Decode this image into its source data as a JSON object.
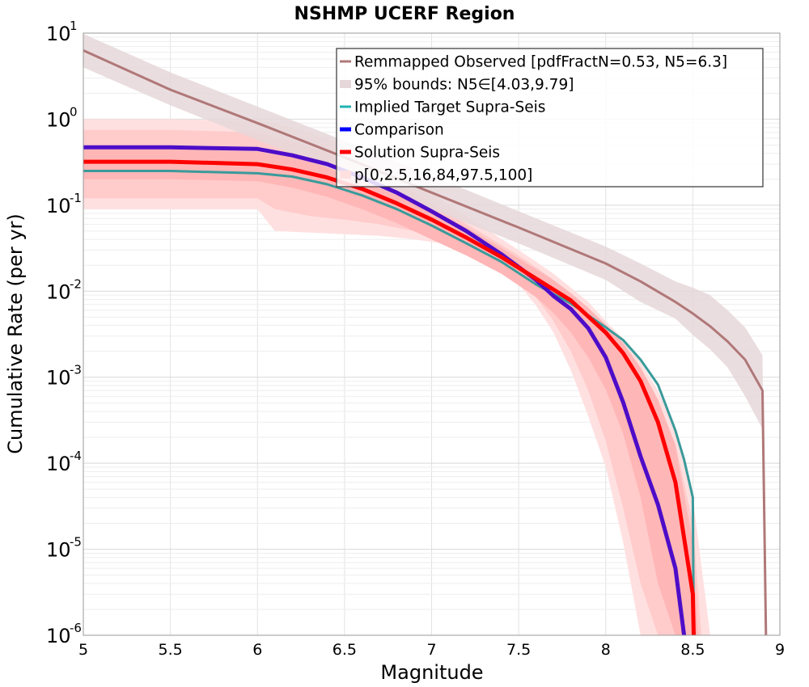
{
  "chart_data": {
    "type": "line",
    "title": "NSHMP UCERF Region",
    "xlabel": "Magnitude",
    "ylabel": "Cumulative Rate (per yr)",
    "x_scale": "linear",
    "y_scale": "log",
    "xlim": [
      5,
      9
    ],
    "ylim": [
      1e-06,
      10
    ],
    "xticks": [
      "5",
      "5.5",
      "6",
      "6.5",
      "7",
      "7.5",
      "8",
      "8.5",
      "9"
    ],
    "yticks": [
      {
        "base": "10",
        "exp": "-6"
      },
      {
        "base": "10",
        "exp": "-5"
      },
      {
        "base": "10",
        "exp": "-4"
      },
      {
        "base": "10",
        "exp": "-3"
      },
      {
        "base": "10",
        "exp": "-2"
      },
      {
        "base": "10",
        "exp": "-1"
      },
      {
        "base": "10",
        "exp": "0"
      },
      {
        "base": "10",
        "exp": "1"
      }
    ],
    "grid": true,
    "legend_position": "top-right",
    "colors": {
      "observed": "#b07878",
      "observed_band": "#e6d7d9",
      "target": "#3a9a9a",
      "target_legend": "#22b2b2",
      "comparison": "#4d0dc8",
      "comparison_legend": "#0000ff",
      "solution": "#ff0000",
      "band_outer": "#ffe0e0",
      "band_mid": "#ffcbcb",
      "band_inner": "#ffb6b6"
    },
    "legend": [
      {
        "key": "observed",
        "label": "Remmapped Observed [pdfFractN=0.53, N5=6.3]"
      },
      {
        "key": "observed_band",
        "label": "95% bounds: N5∈[4.03,9.79]"
      },
      {
        "key": "target",
        "label": "Implied Target Supra-Seis"
      },
      {
        "key": "comparison",
        "label": "Comparison"
      },
      {
        "key": "solution",
        "label": "Solution Supra-Seis"
      },
      {
        "key": "bands",
        "label": "p[0,2.5,16,84,97.5,100]"
      }
    ],
    "series": [
      {
        "key": "observed",
        "x": [
          5.0,
          5.5,
          6.0,
          6.5,
          7.0,
          7.5,
          8.0,
          8.2,
          8.4,
          8.5,
          8.6,
          8.7,
          8.8,
          8.9,
          8.92
        ],
        "values": [
          6.3,
          2.2,
          0.9,
          0.36,
          0.14,
          0.055,
          0.021,
          0.013,
          0.0075,
          0.0055,
          0.0039,
          0.0026,
          0.0016,
          0.0007,
          1e-06
        ]
      },
      {
        "key": "observed_band_upper",
        "x": [
          5.0,
          5.5,
          6.0,
          6.5,
          7.0,
          7.5,
          8.0,
          8.2,
          8.4,
          8.5,
          8.6,
          8.7,
          8.8,
          8.9
        ],
        "values": [
          9.8,
          3.5,
          1.4,
          0.56,
          0.22,
          0.085,
          0.033,
          0.021,
          0.013,
          0.011,
          0.009,
          0.006,
          0.0038,
          0.0018
        ]
      },
      {
        "key": "observed_band_lower",
        "x": [
          5.0,
          5.5,
          6.0,
          6.5,
          7.0,
          7.5,
          8.0,
          8.2,
          8.4,
          8.5,
          8.6,
          8.7,
          8.8,
          8.9
        ],
        "values": [
          4.0,
          1.45,
          0.57,
          0.23,
          0.09,
          0.036,
          0.0135,
          0.0075,
          0.0048,
          0.0031,
          0.0021,
          0.0013,
          0.0006,
          0.00025
        ]
      },
      {
        "key": "target",
        "x": [
          5.0,
          5.5,
          6.0,
          6.2,
          6.4,
          6.6,
          6.8,
          7.0,
          7.2,
          7.4,
          7.6,
          7.8,
          8.0,
          8.1,
          8.2,
          8.3,
          8.4,
          8.45,
          8.5,
          8.505
        ],
        "values": [
          0.25,
          0.25,
          0.235,
          0.215,
          0.175,
          0.13,
          0.09,
          0.058,
          0.036,
          0.022,
          0.012,
          0.0072,
          0.0038,
          0.0027,
          0.0016,
          0.00082,
          0.00024,
          0.00011,
          4e-05,
          1e-06
        ]
      },
      {
        "key": "comparison",
        "x": [
          5.0,
          5.5,
          6.0,
          6.2,
          6.4,
          6.6,
          6.8,
          7.0,
          7.2,
          7.4,
          7.6,
          7.7,
          7.8,
          7.9,
          8.0,
          8.1,
          8.2,
          8.3,
          8.4,
          8.45
        ],
        "values": [
          0.47,
          0.47,
          0.45,
          0.38,
          0.3,
          0.21,
          0.14,
          0.085,
          0.05,
          0.027,
          0.0135,
          0.0088,
          0.0062,
          0.0037,
          0.0017,
          0.00051,
          0.00012,
          3.3e-05,
          6e-06,
          1e-06
        ]
      },
      {
        "key": "solution",
        "x": [
          5.0,
          5.5,
          6.0,
          6.2,
          6.4,
          6.6,
          6.8,
          7.0,
          7.2,
          7.4,
          7.6,
          7.8,
          8.0,
          8.1,
          8.2,
          8.3,
          8.4,
          8.5,
          8.505
        ],
        "values": [
          0.32,
          0.32,
          0.3,
          0.26,
          0.21,
          0.155,
          0.105,
          0.068,
          0.042,
          0.025,
          0.014,
          0.0078,
          0.0033,
          0.0019,
          0.0009,
          0.0003,
          6e-05,
          3e-06,
          1e-06
        ]
      },
      {
        "key": "band_p0_p100",
        "x": [
          5.0,
          5.5,
          6.0,
          6.1,
          6.3,
          6.5,
          6.7,
          6.9,
          7.1,
          7.3,
          7.5,
          7.6,
          7.7,
          7.8,
          7.9,
          8.0,
          8.1,
          8.2,
          8.3,
          8.4,
          8.5,
          8.6
        ],
        "upper": [
          1.0,
          1.0,
          0.95,
          0.9,
          0.7,
          0.5,
          0.3,
          0.18,
          0.1,
          0.055,
          0.03,
          0.022,
          0.016,
          0.011,
          0.0075,
          0.0045,
          0.0028,
          0.0015,
          0.0007,
          0.00025,
          4e-05,
          1e-06
        ],
        "lower": [
          0.09,
          0.09,
          0.09,
          0.05,
          0.048,
          0.046,
          0.044,
          0.04,
          0.035,
          0.025,
          0.012,
          0.0068,
          0.0033,
          0.0012,
          0.00035,
          9e-05,
          1.2e-05,
          1e-06,
          1e-06,
          1e-06,
          1e-06,
          1e-06
        ]
      },
      {
        "key": "band_p2_5_p97_5",
        "x": [
          5.0,
          5.5,
          6.0,
          6.1,
          6.3,
          6.5,
          6.7,
          6.9,
          7.1,
          7.3,
          7.5,
          7.6,
          7.7,
          7.8,
          7.9,
          8.0,
          8.1,
          8.2,
          8.3,
          8.4,
          8.5,
          8.55
        ],
        "upper": [
          0.75,
          0.75,
          0.7,
          0.62,
          0.48,
          0.34,
          0.22,
          0.14,
          0.08,
          0.046,
          0.026,
          0.019,
          0.0135,
          0.0093,
          0.0062,
          0.0038,
          0.0023,
          0.0012,
          0.00052,
          0.00017,
          2e-05,
          1e-06
        ],
        "lower": [
          0.12,
          0.12,
          0.12,
          0.09,
          0.075,
          0.068,
          0.06,
          0.05,
          0.04,
          0.028,
          0.014,
          0.0085,
          0.0045,
          0.002,
          0.0007,
          0.00018,
          3e-05,
          4e-06,
          1e-06,
          1e-06,
          1e-06,
          1e-06
        ]
      },
      {
        "key": "band_p16_p84",
        "x": [
          5.0,
          5.5,
          6.0,
          6.2,
          6.4,
          6.6,
          6.8,
          7.0,
          7.2,
          7.4,
          7.6,
          7.7,
          7.8,
          7.9,
          8.0,
          8.1,
          8.2,
          8.3,
          8.4,
          8.5,
          8.53
        ],
        "upper": [
          0.45,
          0.45,
          0.42,
          0.36,
          0.28,
          0.2,
          0.14,
          0.09,
          0.055,
          0.032,
          0.018,
          0.0135,
          0.0095,
          0.0064,
          0.0041,
          0.0025,
          0.0013,
          0.00055,
          0.00016,
          1.2e-05,
          1e-06
        ],
        "lower": [
          0.2,
          0.2,
          0.19,
          0.16,
          0.125,
          0.09,
          0.062,
          0.04,
          0.026,
          0.016,
          0.0085,
          0.0056,
          0.0033,
          0.0017,
          0.00072,
          0.00022,
          4e-05,
          4e-06,
          1e-06,
          1e-06,
          1e-06
        ]
      }
    ]
  }
}
